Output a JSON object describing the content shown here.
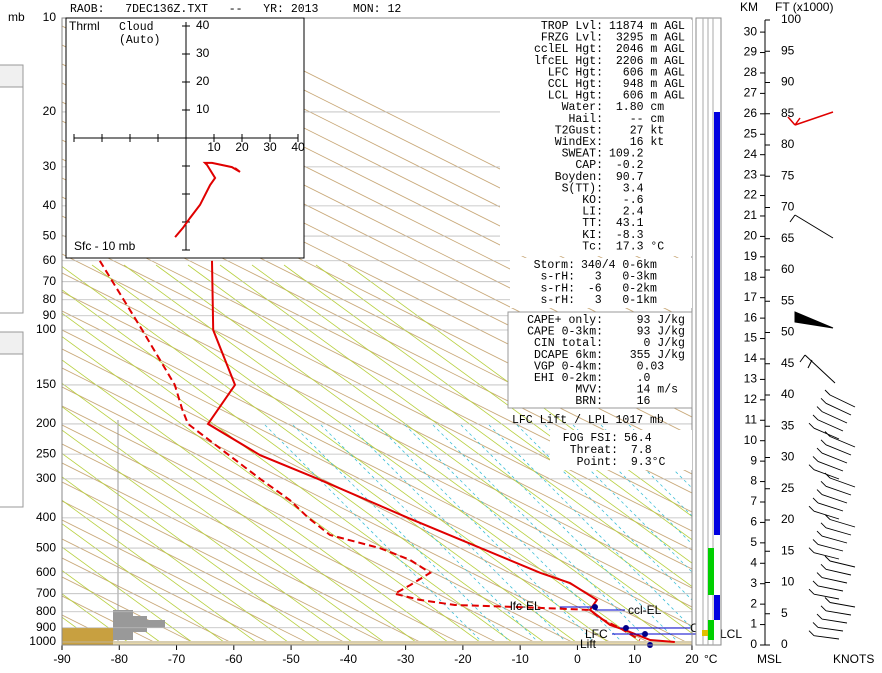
{
  "header": "RAOB:   7DEC136Z.TXT   --   YR: 2013     MON: 12",
  "pressure_axis": {
    "label": "mb",
    "ticks": [
      10,
      20,
      30,
      40,
      50,
      60,
      70,
      80,
      90,
      100,
      150,
      200,
      250,
      300,
      400,
      500,
      600,
      700,
      800,
      900,
      1000
    ]
  },
  "temperature_axis": {
    "ticks": [
      -90,
      -80,
      -70,
      -60,
      -50,
      -40,
      -30,
      -20,
      -10,
      0,
      10,
      20
    ],
    "unit": "°C"
  },
  "temperature_profile": [
    {
      "p": 60,
      "t": -63.8
    },
    {
      "p": 100,
      "t": -63.6
    },
    {
      "p": 150,
      "t": -59.8
    },
    {
      "p": 200,
      "t": -64.5
    },
    {
      "p": 252,
      "t": -55.4
    },
    {
      "p": 300,
      "t": -45.3
    },
    {
      "p": 400,
      "t": -29.6
    },
    {
      "p": 600,
      "t": -6.5
    },
    {
      "p": 647,
      "t": -1.3
    },
    {
      "p": 733,
      "t": 3.4
    },
    {
      "p": 789,
      "t": 2.2
    },
    {
      "p": 882,
      "t": 5.7
    },
    {
      "p": 916,
      "t": 8.3
    },
    {
      "p": 985,
      "t": 12.7
    },
    {
      "p": 1000,
      "t": 17.0
    }
  ],
  "dewpoint_profile": [
    {
      "p": 60,
      "t": -83.4
    },
    {
      "p": 100,
      "t": -76.0
    },
    {
      "p": 150,
      "t": -70.3
    },
    {
      "p": 180,
      "t": -69.0
    },
    {
      "p": 200,
      "t": -68.0
    },
    {
      "p": 300,
      "t": -55.4
    },
    {
      "p": 351,
      "t": -50.2
    },
    {
      "p": 400,
      "t": -47.0
    },
    {
      "p": 454,
      "t": -43.2
    },
    {
      "p": 500,
      "t": -34.5
    },
    {
      "p": 546,
      "t": -29.2
    },
    {
      "p": 600,
      "t": -25.7
    },
    {
      "p": 657,
      "t": -29.2
    },
    {
      "p": 700,
      "t": -31.9
    },
    {
      "p": 733,
      "t": -27.5
    },
    {
      "p": 761,
      "t": -21.4
    },
    {
      "p": 773,
      "t": -10.0
    },
    {
      "p": 789,
      "t": 2.2
    },
    {
      "p": 838,
      "t": 3.9
    },
    {
      "p": 902,
      "t": 7.4
    },
    {
      "p": 985,
      "t": 10.9
    }
  ],
  "hodograph": {
    "thermal_label": "Thrml",
    "cloud_label": "Cloud",
    "cloud_mode": "(Auto)",
    "layer": "Sfc - 10 mb",
    "ticks": [
      10,
      20,
      30,
      40
    ],
    "points": [
      [
        -3.9,
        -35.4
      ],
      [
        -1.1,
        -32.1
      ],
      [
        1.4,
        -28.6
      ],
      [
        5,
        -23.9
      ],
      [
        6.8,
        -20.4
      ],
      [
        8.6,
        -16.8
      ],
      [
        10.4,
        -14.3
      ],
      [
        7.5,
        -9.6
      ],
      [
        6.8,
        -8.9
      ],
      [
        9.3,
        -8.9
      ],
      [
        16.4,
        -10.4
      ],
      [
        19.3,
        -12.1
      ],
      [
        17.5,
        -10.7
      ]
    ]
  },
  "indices": [
    {
      "label": "TROP Lvl:",
      "value": "11874 m AGL"
    },
    {
      "label": "FRZG Lvl:",
      "value": " 3295 m AGL"
    },
    {
      "label": "cclEL Hgt:",
      "value": " 2046 m AGL"
    },
    {
      "label": "lfcEL Hgt:",
      "value": " 2206 m AGL"
    },
    {
      "label": "LFC Hgt:",
      "value": "  606 m AGL"
    },
    {
      "label": "CCL Hgt:",
      "value": "  948 m AGL"
    },
    {
      "label": "LCL Hgt:",
      "value": "  606 m AGL"
    },
    {
      "label": "Water:",
      "value": " 1.80 cm"
    },
    {
      "label": "Hail:",
      "value": "   -- cm"
    },
    {
      "label": "T2Gust:",
      "value": "   27 kt"
    },
    {
      "label": "WindEx:",
      "value": "   16 kt"
    },
    {
      "label": "SWEAT:",
      "value": "109.2"
    },
    {
      "label": "CAP:",
      "value": " -0.2"
    },
    {
      "label": "Boyden:",
      "value": " 90.7"
    },
    {
      "label": "S(TT):",
      "value": "  3.4"
    },
    {
      "label": "KO:",
      "value": "  -.6"
    },
    {
      "label": "LI:",
      "value": "  2.4"
    },
    {
      "label": "TT:",
      "value": " 43.1"
    },
    {
      "label": "KI:",
      "value": " -8.3"
    },
    {
      "label": "Tc:",
      "value": " 17.3 °C"
    }
  ],
  "storm": [
    {
      "label": "Storm:",
      "value": "340/4 0-6km"
    },
    {
      "label": "s-rH:",
      "value": "  3   0-3km"
    },
    {
      "label": "s-rH:",
      "value": " -6   0-2km"
    },
    {
      "label": "s-rH:",
      "value": "  3   0-1km"
    }
  ],
  "cape": [
    {
      "label": "CAPE+ only:",
      "value": "    93 J/kg"
    },
    {
      "label": "CAPE 0-3km:",
      "value": "    93 J/kg"
    },
    {
      "label": "CIN total:",
      "value": "     0 J/kg"
    },
    {
      "label": "DCAPE 6km:",
      "value": "   355 J/kg"
    },
    {
      "label": "VGP 0-4km:",
      "value": "    0.03"
    },
    {
      "label": "EHI 0-2km:",
      "value": "    .0"
    },
    {
      "label": "MVV:",
      "value": "    14 m/s"
    },
    {
      "label": "BRN:",
      "value": "    16"
    }
  ],
  "lift_note": "LFC Lift / LPL 1017 mb",
  "fog": [
    {
      "label": "FOG FSI:",
      "value": "56.4"
    },
    {
      "label": "Threat:",
      "value": " 7.8"
    },
    {
      "label": "Point:",
      "value": " 9.3°C"
    }
  ],
  "annotations": [
    "lfc-EL",
    "ccl-EL",
    "CCL",
    "LFC",
    "LCL",
    "Lift"
  ],
  "height_axis": {
    "km_label": "KM",
    "ft_label": "FT (x1000)",
    "km_ticks": [
      0,
      1,
      2,
      3,
      4,
      5,
      6,
      7,
      8,
      9,
      10,
      11,
      12,
      13,
      14,
      15,
      16,
      17,
      18,
      19,
      20,
      21,
      22,
      23,
      24,
      25,
      26,
      27,
      28,
      29,
      30
    ],
    "ft_ticks": [
      0,
      5,
      10,
      15,
      20,
      25,
      30,
      35,
      40,
      45,
      50,
      55,
      60,
      65,
      70,
      75,
      80,
      85,
      90,
      95,
      100
    ],
    "bottom_left": "MSL",
    "bottom_right": "KNOTS"
  }
}
